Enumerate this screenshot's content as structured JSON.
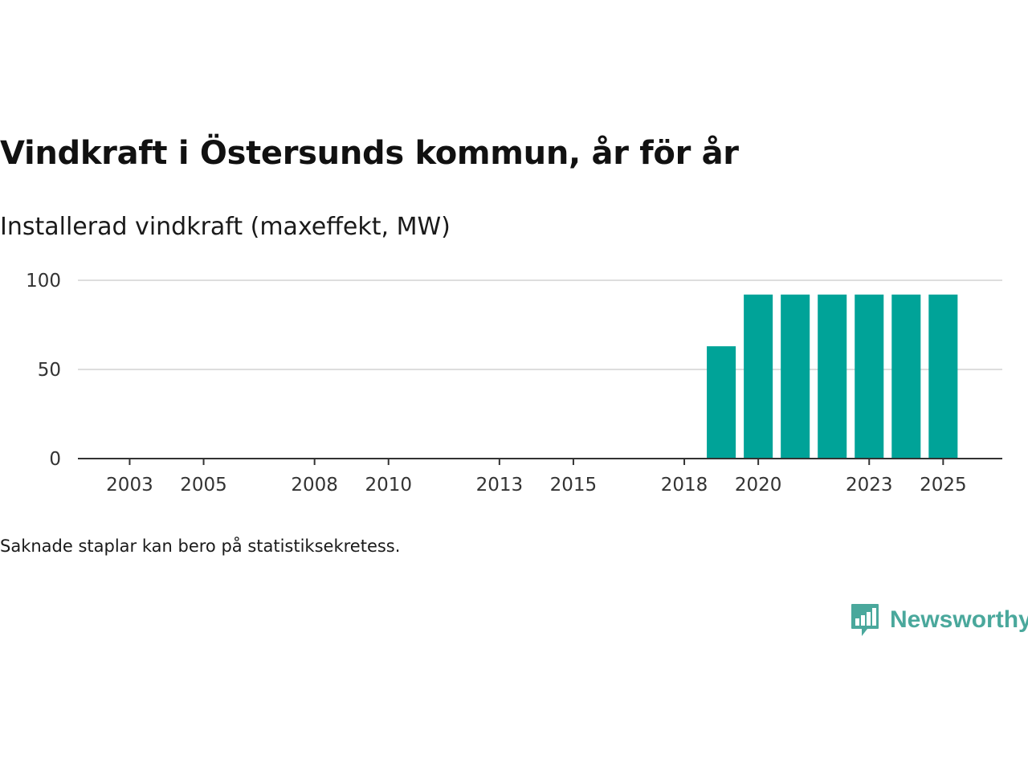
{
  "title": "Vindkraft i Östersunds kommun, år för år",
  "subtitle": "Installerad vindkraft (maxeffekt, MW)",
  "note": "Saknade staplar kan bero på statistiksekretess.",
  "brand": {
    "name": "Newsworthy",
    "logo_icon": "bar-chart-speech-bubble-icon"
  },
  "colors": {
    "bar": "#00a398",
    "grid": "#dddddd",
    "axis": "#333333",
    "brand": "#4aa89c"
  },
  "chart_data": {
    "type": "bar",
    "title": "Vindkraft i Östersunds kommun, år för år",
    "ylabel": "Installerad vindkraft (maxeffekt, MW)",
    "xlabel": "",
    "x_domain": [
      2001.6,
      2026.6
    ],
    "ylim": [
      0,
      100
    ],
    "yticks": [
      0,
      50,
      100
    ],
    "xticks": [
      2003,
      2005,
      2008,
      2010,
      2013,
      2015,
      2018,
      2020,
      2023,
      2025
    ],
    "categories": [
      2019,
      2020,
      2021,
      2022,
      2023,
      2024,
      2025
    ],
    "values": [
      63,
      92,
      92,
      92,
      92,
      92,
      92
    ],
    "grid": true,
    "legend": "none"
  }
}
